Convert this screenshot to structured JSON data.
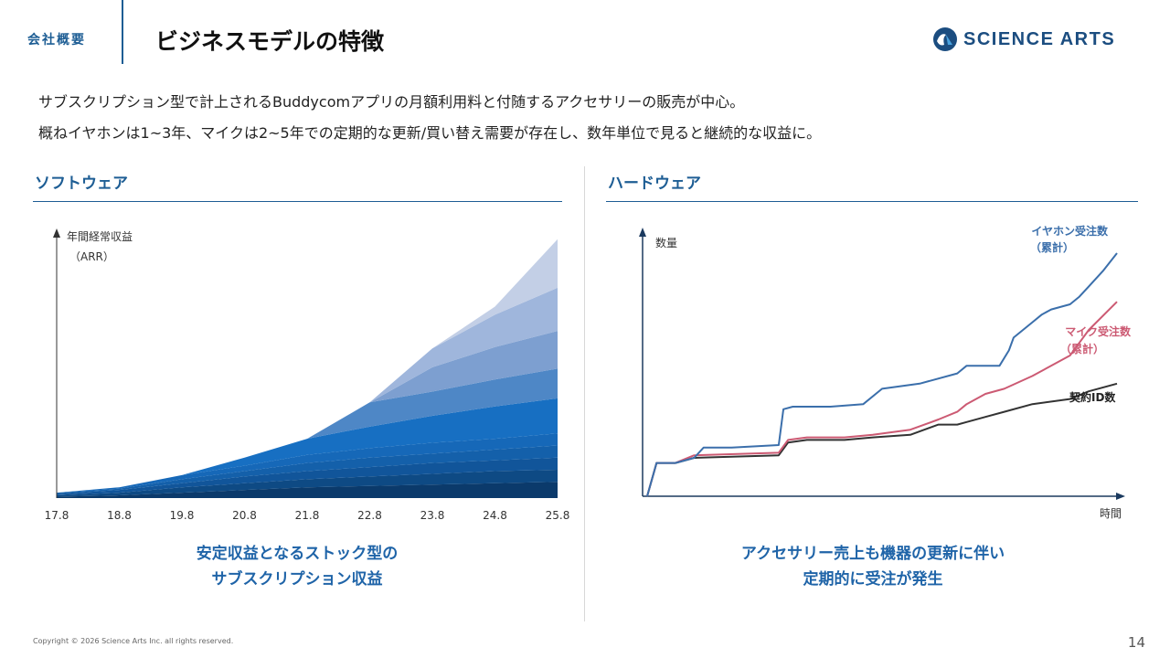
{
  "header": {
    "section": "会社概要",
    "title": "ビジネスモデルの特徴",
    "logo_text": "SCIENCE ARTS"
  },
  "intro": {
    "line1": "サブスクリプション型で計上されるBuddycomアプリの月額利用料と付随するアクセサリーの販売が中心。",
    "line2": "概ねイヤホンは1~3年、マイクは2~5年での定期的な更新/買い替え需要が存在し、数年単位で見ると継続的な収益に。"
  },
  "software": {
    "heading": "ソフトウェア",
    "caption_line1": "安定収益となるストック型の",
    "caption_line2": "サブスクリプション収益"
  },
  "hardware": {
    "heading": "ハードウェア",
    "caption_line1": "アクセサリー売上も機器の更新に伴い",
    "caption_line2": "定期的に受注が発生"
  },
  "chart_data": [
    {
      "type": "area",
      "stacked": true,
      "title": "",
      "ylabel_line1": "年間経常収益",
      "ylabel_line2": "（ARR）",
      "xlabel": "",
      "categories": [
        "17.8",
        "18.8",
        "19.8",
        "20.8",
        "21.8",
        "22.8",
        "23.8",
        "24.8",
        "25.8"
      ],
      "ylim": [
        0,
        100
      ],
      "series": [
        {
          "name": "c1",
          "color": "#0b3a6b",
          "values": [
            0.5,
            1,
            2,
            3,
            4,
            4.5,
            5,
            5.5,
            6
          ]
        },
        {
          "name": "c2",
          "color": "#0e4a84",
          "values": [
            0.5,
            1,
            2,
            2.5,
            3,
            3.5,
            4,
            4.5,
            4.5
          ]
        },
        {
          "name": "c3",
          "color": "#11559a",
          "values": [
            0.5,
            1,
            1.5,
            2.5,
            3,
            3.5,
            4,
            4,
            4.5
          ]
        },
        {
          "name": "c4",
          "color": "#1460aa",
          "values": [
            0.5,
            0.5,
            1.5,
            2,
            3,
            3.5,
            3.5,
            4,
            4.5
          ]
        },
        {
          "name": "c5",
          "color": "#1668b8",
          "values": [
            0,
            0.5,
            1.5,
            2,
            3,
            3.5,
            4,
            4,
            4.5
          ]
        },
        {
          "name": "c6",
          "color": "#176fc2",
          "values": [
            0,
            0,
            0,
            3,
            6,
            8,
            10,
            12,
            13
          ]
        },
        {
          "name": "c7",
          "color": "#4e87c6",
          "values": [
            0,
            0,
            0,
            0,
            0,
            9,
            9,
            10,
            11
          ]
        },
        {
          "name": "c8",
          "color": "#7d9fd0",
          "values": [
            0,
            0,
            0,
            0,
            0,
            0,
            9,
            12,
            14
          ]
        },
        {
          "name": "c9",
          "color": "#9fb6dc",
          "values": [
            0,
            0,
            0,
            0,
            0,
            0,
            7,
            12,
            16
          ]
        },
        {
          "name": "c10",
          "color": "#c3cfe6",
          "values": [
            0,
            0,
            0,
            0,
            0,
            0,
            0,
            3,
            18
          ]
        }
      ]
    },
    {
      "type": "line",
      "title": "",
      "ylabel": "数量",
      "xlabel": "時間",
      "xlim": [
        0,
        100
      ],
      "ylim": [
        0,
        100
      ],
      "series": [
        {
          "name": "イヤホン受注数",
          "name_sub": "（累計）",
          "color": "#3b6fab",
          "x": [
            0,
            2,
            6,
            10,
            12,
            18,
            28,
            29,
            31,
            39,
            46,
            50,
            58,
            66,
            68,
            75,
            77,
            78,
            80,
            82,
            84,
            86,
            90,
            92,
            94,
            97,
            100
          ],
          "y": [
            0,
            13,
            13,
            15,
            19,
            19,
            20,
            34,
            35,
            35,
            36,
            42,
            44,
            48,
            51,
            51,
            57,
            62,
            65,
            68,
            71,
            73,
            75,
            78,
            82,
            88,
            95
          ]
        },
        {
          "name": "マイク受注数",
          "name_sub": "（累計）",
          "color": "#cc5a73",
          "x": [
            0,
            2,
            6,
            10,
            28,
            30,
            34,
            42,
            48,
            56,
            62,
            66,
            68,
            72,
            76,
            82,
            90,
            94,
            100
          ],
          "y": [
            0,
            13,
            13,
            16,
            17,
            22,
            23,
            23,
            24,
            26,
            30,
            33,
            36,
            40,
            42,
            47,
            55,
            65,
            76
          ]
        },
        {
          "name": "契約ID数",
          "name_sub": "",
          "color": "#333333",
          "x": [
            0,
            2,
            6,
            10,
            28,
            30,
            34,
            42,
            48,
            56,
            62,
            66,
            68,
            72,
            76,
            82,
            90,
            94,
            100
          ],
          "y": [
            0,
            13,
            13,
            15,
            16,
            21,
            22,
            22,
            23,
            24,
            28,
            28,
            29,
            31,
            33,
            36,
            38,
            41,
            44
          ]
        }
      ]
    }
  ],
  "footer": {
    "copyright": "Copyright © 2026 Science Arts Inc. all rights reserved.",
    "page": "14"
  }
}
